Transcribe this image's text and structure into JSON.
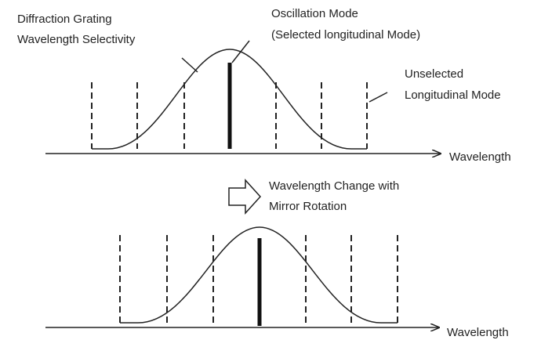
{
  "top_panel": {
    "grating_label": [
      "Diffraction Grating",
      "Wavelength Selectivity"
    ],
    "oscillation_label": [
      "Oscillation Mode",
      "(Selected longitudinal Mode)"
    ],
    "unselected_label": [
      "Unselected",
      "Longitudinal Mode"
    ],
    "axis_label": "Wavelength"
  },
  "transition_label": [
    "Wavelength Change with",
    "Mirror Rotation"
  ],
  "bottom_panel": {
    "axis_label": "Wavelength"
  }
}
